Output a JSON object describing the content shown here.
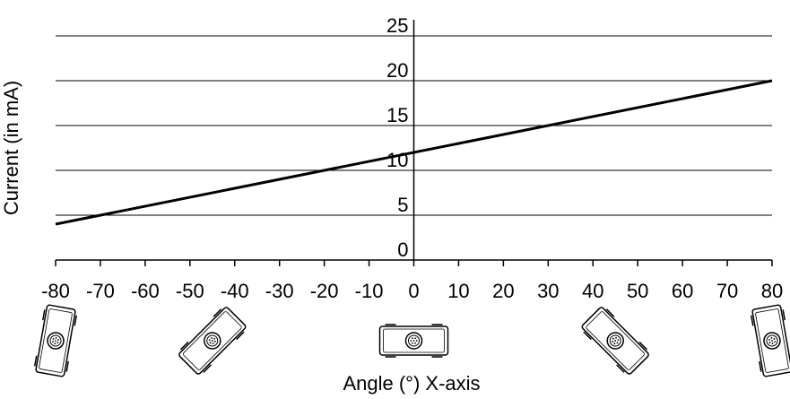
{
  "chart_data": {
    "type": "line",
    "xlabel": "Angle (°) X-axis",
    "ylabel": "Current (in mA)",
    "xlim": [
      -80,
      80
    ],
    "ylim": [
      0,
      25
    ],
    "xticks": [
      "-80",
      "-70",
      "-60",
      "-50",
      "-40",
      "-30",
      "-20",
      "-10",
      "0",
      "10",
      "20",
      "30",
      "40",
      "50",
      "60",
      "70",
      "80"
    ],
    "yticks": [
      "0",
      "5",
      "10",
      "15",
      "20",
      "25"
    ],
    "grid": "horizontal",
    "series": [
      {
        "x": [
          -80,
          80
        ],
        "y": [
          4,
          20
        ]
      }
    ],
    "sensor_icons": [
      {
        "angle_deg": -80,
        "icon": "sensor-tilted-icon"
      },
      {
        "angle_deg": -45,
        "icon": "sensor-tilted-icon"
      },
      {
        "angle_deg": 0,
        "icon": "sensor-level-icon"
      },
      {
        "angle_deg": 45,
        "icon": "sensor-tilted-icon"
      },
      {
        "angle_deg": 80,
        "icon": "sensor-tilted-icon"
      }
    ]
  }
}
